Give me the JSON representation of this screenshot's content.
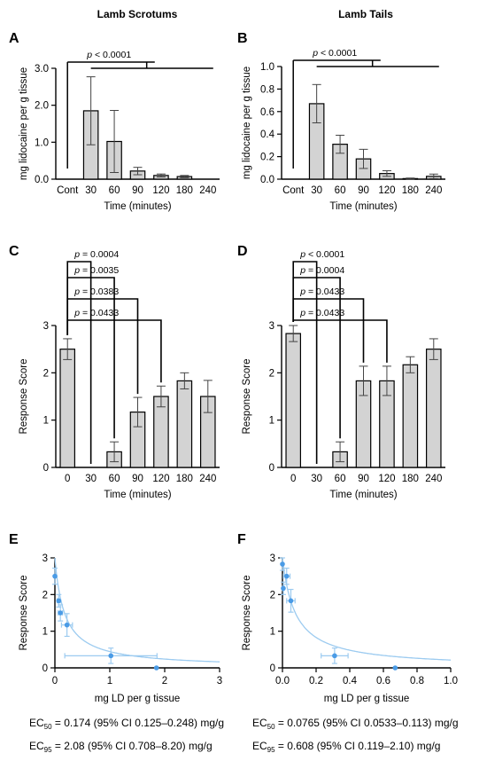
{
  "column_titles": [
    "Lamb Scrotums",
    "Lamb Tails"
  ],
  "panel_letters": [
    "A",
    "B",
    "C",
    "D",
    "E",
    "F"
  ],
  "colors": {
    "bar_fill": "#d3d3d3",
    "axis": "#000000",
    "fit_line": "#9ccbf0",
    "point": "#4a9be6"
  },
  "chart_data": [
    {
      "id": "A",
      "type": "bar",
      "title": "",
      "column": "Lamb Scrotums",
      "xlabel": "Time (minutes)",
      "ylabel": "mg lidocaine per g tissue",
      "categories": [
        "Cont",
        "30",
        "60",
        "90",
        "120",
        "180",
        "240"
      ],
      "values": [
        0,
        1.85,
        1.02,
        0.22,
        0.1,
        0.07,
        0
      ],
      "errors": [
        0,
        0.92,
        0.84,
        0.1,
        0.04,
        0.03,
        0
      ],
      "ylim": [
        0,
        3
      ],
      "yticks": [
        "0.0",
        "1.0",
        "2.0",
        "3.0"
      ],
      "grid": false,
      "significance": [
        {
          "label": "p < 0.0001",
          "from": "Cont",
          "to": "30–240 (all groups)"
        }
      ]
    },
    {
      "id": "B",
      "type": "bar",
      "title": "",
      "column": "Lamb Tails",
      "xlabel": "Time (minutes)",
      "ylabel": "mg lidocaine per g tissue",
      "categories": [
        "Cont",
        "30",
        "60",
        "90",
        "120",
        "180",
        "240"
      ],
      "values": [
        0,
        0.67,
        0.31,
        0.18,
        0.05,
        0.005,
        0.025
      ],
      "errors": [
        0,
        0.17,
        0.08,
        0.085,
        0.025,
        0.005,
        0.02
      ],
      "ylim": [
        0,
        1.0
      ],
      "yticks": [
        "0.0",
        "0.2",
        "0.4",
        "0.6",
        "0.8",
        "1.0"
      ],
      "grid": false,
      "significance": [
        {
          "label": "p < 0.0001",
          "from": "Cont",
          "to": "30–240 (all groups)"
        }
      ]
    },
    {
      "id": "C",
      "type": "bar",
      "title": "",
      "column": "Lamb Scrotums",
      "xlabel": "Time (minutes)",
      "ylabel": "Response Score",
      "categories": [
        "0",
        "30",
        "60",
        "90",
        "120",
        "180",
        "240"
      ],
      "values": [
        2.5,
        0,
        0.33,
        1.17,
        1.5,
        1.83,
        1.5
      ],
      "errors": [
        0.22,
        0,
        0.21,
        0.31,
        0.22,
        0.17,
        0.34
      ],
      "ylim": [
        0,
        3
      ],
      "yticks": [
        "0",
        "1",
        "2",
        "3"
      ],
      "grid": false,
      "significance": [
        {
          "label": "p = 0.0004",
          "from": "0",
          "to": "30"
        },
        {
          "label": "p = 0.0035",
          "from": "0",
          "to": "60"
        },
        {
          "label": "p = 0.0383",
          "from": "0",
          "to": "90"
        },
        {
          "label": "p = 0.0433",
          "from": "0",
          "to": "120"
        }
      ]
    },
    {
      "id": "D",
      "type": "bar",
      "title": "",
      "column": "Lamb Tails",
      "xlabel": "Time (minutes)",
      "ylabel": "Response Score",
      "categories": [
        "0",
        "30",
        "60",
        "90",
        "120",
        "180",
        "240"
      ],
      "values": [
        2.83,
        0,
        0.33,
        1.83,
        1.83,
        2.17,
        2.5
      ],
      "errors": [
        0.17,
        0,
        0.21,
        0.31,
        0.31,
        0.17,
        0.22
      ],
      "ylim": [
        0,
        3
      ],
      "yticks": [
        "0",
        "1",
        "2",
        "3"
      ],
      "grid": false,
      "significance": [
        {
          "label": "p < 0.0001",
          "from": "0",
          "to": "30"
        },
        {
          "label": "p = 0.0004",
          "from": "0",
          "to": "60"
        },
        {
          "label": "p = 0.0433",
          "from": "0",
          "to": "90"
        },
        {
          "label": "p = 0.0433",
          "from": "0",
          "to": "120"
        }
      ]
    },
    {
      "id": "E",
      "type": "scatter",
      "title": "",
      "column": "Lamb Scrotums",
      "xlabel": "mg LD per g tissue",
      "ylabel": "Response Score",
      "xlim": [
        0,
        3
      ],
      "ylim": [
        0,
        3
      ],
      "xticks": [
        "0",
        "1",
        "2",
        "3"
      ],
      "yticks": [
        "0",
        "1",
        "2",
        "3"
      ],
      "grid": false,
      "points": [
        {
          "x": 0.0,
          "y": 2.5,
          "xerr": 0.0,
          "yerr": 0.22
        },
        {
          "x": 0.07,
          "y": 1.83,
          "xerr": 0.03,
          "yerr": 0.17
        },
        {
          "x": 0.1,
          "y": 1.5,
          "xerr": 0.04,
          "yerr": 0.22
        },
        {
          "x": 0.22,
          "y": 1.17,
          "xerr": 0.1,
          "yerr": 0.31
        },
        {
          "x": 1.02,
          "y": 0.33,
          "xerr": 0.84,
          "yerr": 0.21
        },
        {
          "x": 1.85,
          "y": 0.0,
          "xerr": 0.0,
          "yerr": 0.0
        }
      ],
      "fit": {
        "top": 3.0,
        "ec50": 0.174
      },
      "annotations": [
        {
          "prefix": "EC",
          "sub": "50",
          "text": " = 0.174 (95% CI 0.125–0.248) mg/g"
        },
        {
          "prefix": "EC",
          "sub": "95",
          "text": " = 2.08 (95% CI 0.708–8.20) mg/g"
        }
      ]
    },
    {
      "id": "F",
      "type": "scatter",
      "title": "",
      "column": "Lamb Tails",
      "xlabel": "mg LD per g tissue",
      "ylabel": "Response Score",
      "xlim": [
        0,
        1.0
      ],
      "ylim": [
        0,
        3
      ],
      "xticks": [
        "0.0",
        "0.2",
        "0.4",
        "0.6",
        "0.8",
        "1.0"
      ],
      "yticks": [
        "0",
        "1",
        "2",
        "3"
      ],
      "grid": false,
      "points": [
        {
          "x": 0.0,
          "y": 2.83,
          "xerr": 0.0,
          "yerr": 0.17
        },
        {
          "x": 0.005,
          "y": 2.17,
          "xerr": 0.005,
          "yerr": 0.17
        },
        {
          "x": 0.025,
          "y": 2.5,
          "xerr": 0.02,
          "yerr": 0.22
        },
        {
          "x": 0.05,
          "y": 1.83,
          "xerr": 0.025,
          "yerr": 0.31
        },
        {
          "x": 0.31,
          "y": 0.33,
          "xerr": 0.08,
          "yerr": 0.21
        },
        {
          "x": 0.67,
          "y": 0.0,
          "xerr": 0.0,
          "yerr": 0.0
        }
      ],
      "fit": {
        "top": 3.0,
        "ec50": 0.0765
      },
      "annotations": [
        {
          "prefix": "EC",
          "sub": "50",
          "text": " = 0.0765 (95% CI 0.0533–0.113) mg/g"
        },
        {
          "prefix": "EC",
          "sub": "95",
          "text": " = 0.608 (95% CI 0.119–2.10) mg/g"
        }
      ]
    }
  ]
}
